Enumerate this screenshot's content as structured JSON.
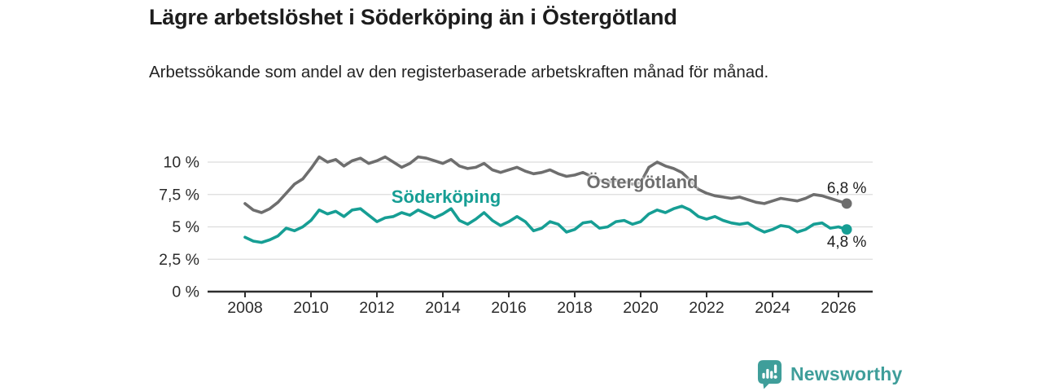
{
  "header": {
    "title": "Lägre arbetslöshet i Söderköping än i Östergötland",
    "subtitle": "Arbetssökande som andel av den registerbaserade arbetskraften månad för månad."
  },
  "branding": {
    "name": "Newsworthy",
    "icon": "newsworthy-bubble-barchart-icon",
    "color": "#3f9e9a"
  },
  "chart_data": {
    "type": "line",
    "title": "Lägre arbetslöshet i Söderköping än i Östergötland",
    "subtitle": "Arbetssökande som andel av den registerbaserade arbetskraften månad för månad.",
    "unit": "%",
    "grid": true,
    "legend_position": "inline-labels",
    "x_start": 2008,
    "x_step": 0.25,
    "x_axis": {
      "ticks": [
        2008,
        2010,
        2012,
        2014,
        2016,
        2018,
        2020,
        2022,
        2024,
        2026
      ],
      "range": [
        2006.9,
        2027.0
      ]
    },
    "y_axis": {
      "tick_values": [
        0,
        2.5,
        5,
        7.5,
        10
      ],
      "tick_labels": [
        "0 %",
        "2,5 %",
        "5 %",
        "7,5 %",
        "10 %"
      ],
      "range": [
        0,
        11.8
      ]
    },
    "colors": {
      "axis": "#2e2e2e",
      "gridline": "#dcdcdc",
      "tick_text": "#2b2b2b"
    },
    "series": [
      {
        "name": "Östergötland",
        "color": "#6e6e6e",
        "end_label": "6,8 %",
        "end_value": 6.8,
        "values": [
          6.8,
          6.3,
          6.1,
          6.4,
          6.9,
          7.6,
          8.3,
          8.7,
          9.5,
          10.4,
          10.0,
          10.2,
          9.7,
          10.1,
          10.3,
          9.9,
          10.1,
          10.4,
          10.0,
          9.6,
          9.9,
          10.4,
          10.3,
          10.1,
          9.9,
          10.2,
          9.7,
          9.5,
          9.6,
          9.9,
          9.4,
          9.2,
          9.4,
          9.6,
          9.3,
          9.1,
          9.2,
          9.4,
          9.1,
          8.9,
          9.0,
          9.2,
          8.9,
          8.6,
          8.4,
          8.6,
          8.5,
          8.3,
          8.4,
          9.6,
          10.0,
          9.7,
          9.5,
          9.2,
          8.6,
          7.9,
          7.6,
          7.4,
          7.3,
          7.2,
          7.3,
          7.1,
          6.9,
          6.8,
          7.0,
          7.2,
          7.1,
          7.0,
          7.2,
          7.5,
          7.4,
          7.2,
          7.0,
          6.8
        ]
      },
      {
        "name": "Söderköping",
        "color": "#169e94",
        "end_label": "4,8 %",
        "end_value": 4.8,
        "values": [
          4.2,
          3.9,
          3.8,
          4.0,
          4.3,
          4.9,
          4.7,
          5.0,
          5.5,
          6.3,
          6.0,
          6.2,
          5.8,
          6.3,
          6.4,
          5.9,
          5.4,
          5.7,
          5.8,
          6.1,
          5.9,
          6.3,
          6.0,
          5.7,
          6.0,
          6.4,
          5.5,
          5.2,
          5.6,
          6.1,
          5.5,
          5.1,
          5.4,
          5.8,
          5.4,
          4.7,
          4.9,
          5.4,
          5.2,
          4.6,
          4.8,
          5.3,
          5.4,
          4.9,
          5.0,
          5.4,
          5.5,
          5.2,
          5.4,
          6.0,
          6.3,
          6.1,
          6.4,
          6.6,
          6.3,
          5.8,
          5.6,
          5.8,
          5.5,
          5.3,
          5.2,
          5.3,
          4.9,
          4.6,
          4.8,
          5.1,
          5.0,
          4.6,
          4.8,
          5.2,
          5.3,
          4.9,
          5.0,
          4.8
        ]
      }
    ]
  }
}
